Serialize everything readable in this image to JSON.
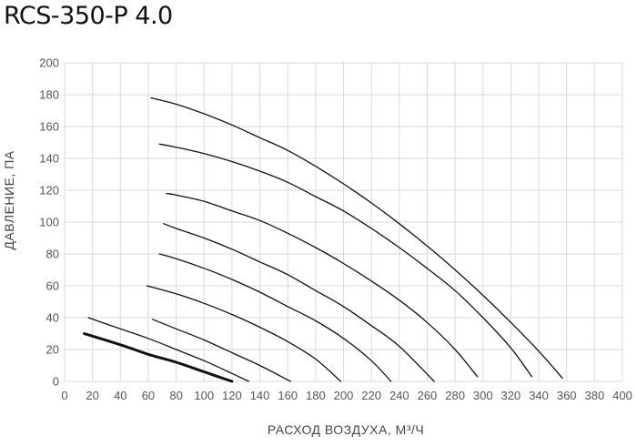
{
  "chart_data": {
    "type": "line",
    "title": "RCS-350-P 4.0",
    "xlabel": "РАСХОД ВОЗДУХА, М³/Ч",
    "ylabel": "ДАВЛЕНИЕ, ПА",
    "xlim": [
      0,
      400
    ],
    "ylim": [
      0,
      200
    ],
    "xticks": [
      "0",
      "20",
      "40",
      "60",
      "80",
      "100",
      "120",
      "140",
      "160",
      "180",
      "200",
      "220",
      "240",
      "260",
      "280",
      "300",
      "320",
      "340",
      "360",
      "380",
      "400"
    ],
    "yticks": [
      "0",
      "20",
      "40",
      "60",
      "80",
      "100",
      "120",
      "140",
      "160",
      "180",
      "200"
    ],
    "grid": true,
    "series": [
      {
        "bold": true,
        "x": [
          14,
          40,
          60,
          80,
          100,
          120
        ],
        "y": [
          30,
          23,
          17,
          12,
          6,
          0
        ]
      },
      {
        "bold": false,
        "x": [
          17,
          40,
          60,
          80,
          100,
          120,
          132
        ],
        "y": [
          40,
          33,
          27,
          20,
          13,
          5,
          0
        ]
      },
      {
        "bold": false,
        "x": [
          63,
          80,
          100,
          120,
          140,
          162
        ],
        "y": [
          39,
          33,
          26,
          18,
          10,
          0
        ]
      },
      {
        "bold": false,
        "x": [
          59,
          80,
          100,
          120,
          140,
          160,
          180,
          198
        ],
        "y": [
          60,
          55,
          49,
          42,
          34,
          25,
          14,
          0
        ]
      },
      {
        "bold": false,
        "x": [
          68,
          80,
          100,
          120,
          140,
          160,
          180,
          200,
          220,
          234
        ],
        "y": [
          80,
          77,
          71,
          64,
          56,
          47,
          38,
          27,
          13,
          0
        ]
      },
      {
        "bold": false,
        "x": [
          71,
          80,
          100,
          120,
          140,
          160,
          180,
          200,
          220,
          240,
          265
        ],
        "y": [
          99,
          96,
          90,
          83,
          75,
          67,
          57,
          47,
          35,
          22,
          0
        ]
      },
      {
        "bold": false,
        "x": [
          73,
          80,
          100,
          120,
          140,
          160,
          180,
          200,
          220,
          240,
          260,
          280,
          296
        ],
        "y": [
          118,
          117,
          113,
          107,
          101,
          93,
          84,
          74,
          63,
          51,
          37,
          20,
          3
        ]
      },
      {
        "bold": false,
        "x": [
          68,
          80,
          100,
          120,
          140,
          160,
          180,
          200,
          220,
          240,
          260,
          280,
          300,
          320,
          335
        ],
        "y": [
          149,
          147,
          143,
          138,
          132,
          125,
          116,
          107,
          96,
          84,
          71,
          57,
          40,
          21,
          3
        ]
      },
      {
        "bold": false,
        "x": [
          62,
          80,
          100,
          120,
          140,
          160,
          180,
          200,
          220,
          240,
          260,
          280,
          300,
          320,
          340,
          357
        ],
        "y": [
          178,
          174,
          168,
          161,
          153,
          145,
          135,
          124,
          112,
          99,
          85,
          70,
          54,
          37,
          19,
          2
        ]
      }
    ]
  }
}
